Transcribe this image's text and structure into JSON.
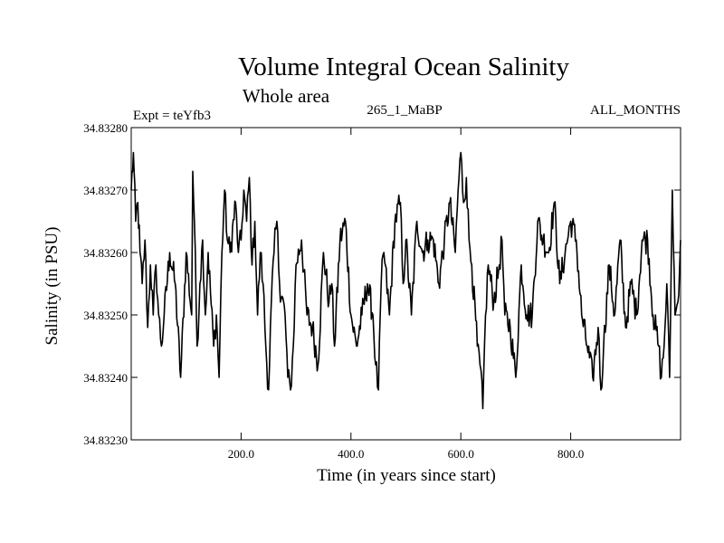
{
  "chart_data": {
    "type": "line",
    "title": "Volume Integral Ocean Salinity",
    "subtitle": "Whole area",
    "annotations": {
      "left": "Expt = teYfb3",
      "center": "265_1_MaBP",
      "right": "ALL_MONTHS"
    },
    "xlabel": "Time (in years since start)",
    "ylabel": "Salinity (in PSU)",
    "xlim": [
      0,
      1000
    ],
    "ylim": [
      34.8323,
      34.8328
    ],
    "x_ticks": [
      200,
      400,
      600,
      800
    ],
    "x_tick_labels": [
      "200.0",
      "400.0",
      "600.0",
      "800.0"
    ],
    "y_ticks": [
      34.8323,
      34.8324,
      34.8325,
      34.8326,
      34.8327,
      34.8328
    ],
    "y_tick_labels": [
      "34.83230",
      "34.83240",
      "34.83250",
      "34.83260",
      "34.83270",
      "34.83280"
    ],
    "series": [
      {
        "name": "salinity",
        "color": "#000000",
        "x": [
          0,
          4,
          8,
          12,
          16,
          20,
          25,
          30,
          35,
          40,
          45,
          50,
          55,
          60,
          70,
          80,
          90,
          100,
          110,
          112,
          115,
          120,
          125,
          130,
          135,
          140,
          150,
          155,
          160,
          165,
          170,
          175,
          180,
          190,
          195,
          200,
          205,
          210,
          215,
          220,
          225,
          230,
          235,
          240,
          245,
          250,
          255,
          260,
          265,
          270,
          280,
          285,
          290,
          295,
          300,
          310,
          320,
          330,
          340,
          350,
          360,
          365,
          370,
          380,
          390,
          400,
          410,
          420,
          430,
          440,
          445,
          450,
          455,
          460,
          470,
          480,
          490,
          495,
          500,
          510,
          520,
          530,
          540,
          550,
          560,
          570,
          580,
          590,
          595,
          600,
          605,
          610,
          615,
          620,
          630,
          635,
          640,
          645,
          650,
          660,
          670,
          675,
          680,
          690,
          700,
          710,
          720,
          730,
          740,
          750,
          760,
          770,
          780,
          790,
          800,
          810,
          820,
          830,
          840,
          850,
          855,
          860,
          870,
          880,
          890,
          900,
          910,
          920,
          930,
          940,
          950,
          960,
          965,
          970,
          975,
          980,
          985,
          990,
          995,
          1000
        ],
        "values": [
          34.8327,
          34.83276,
          34.83265,
          34.83268,
          34.8326,
          34.83255,
          34.83262,
          34.83248,
          34.83258,
          34.8325,
          34.83258,
          34.8325,
          34.83245,
          34.8325,
          34.8326,
          34.83255,
          34.8324,
          34.8326,
          34.8325,
          34.83273,
          34.83265,
          34.83245,
          34.83255,
          34.83262,
          34.8325,
          34.8326,
          34.83245,
          34.8325,
          34.8324,
          34.8326,
          34.8327,
          34.83262,
          34.8326,
          34.83268,
          34.8326,
          34.83262,
          34.8327,
          34.83265,
          34.83272,
          34.83258,
          34.83265,
          34.8325,
          34.8326,
          34.83255,
          34.83245,
          34.83238,
          34.83252,
          34.8326,
          34.83265,
          34.83255,
          34.8325,
          34.8324,
          34.83238,
          34.83245,
          34.83258,
          34.83262,
          34.8325,
          34.83248,
          34.83242,
          34.8326,
          34.83252,
          34.83255,
          34.83245,
          34.83262,
          34.83265,
          34.8325,
          34.83245,
          34.8325,
          34.83255,
          34.8325,
          34.83242,
          34.83238,
          34.83255,
          34.8326,
          34.8325,
          34.83265,
          34.83268,
          34.83255,
          34.83262,
          34.8325,
          34.83265,
          34.8326,
          34.83262,
          34.83262,
          34.83255,
          34.83262,
          34.83268,
          34.8326,
          34.8327,
          34.83276,
          34.83268,
          34.83272,
          34.83262,
          34.83258,
          34.83245,
          34.83242,
          34.83235,
          34.8325,
          34.83258,
          34.83252,
          34.83258,
          34.83262,
          34.8325,
          34.83248,
          34.8324,
          34.83258,
          34.8325,
          34.8325,
          34.83265,
          34.83262,
          34.8326,
          34.83268,
          34.83255,
          34.8326,
          34.83265,
          34.83262,
          34.8325,
          34.83245,
          34.8324,
          34.83248,
          34.83238,
          34.83245,
          34.83258,
          34.8325,
          34.83262,
          34.83248,
          34.83255,
          34.8325,
          34.83262,
          34.83262,
          34.8325,
          34.83245,
          34.8324,
          34.83245,
          34.83255,
          34.8324,
          34.8327,
          34.8325,
          34.83252,
          34.83262
        ]
      }
    ]
  }
}
